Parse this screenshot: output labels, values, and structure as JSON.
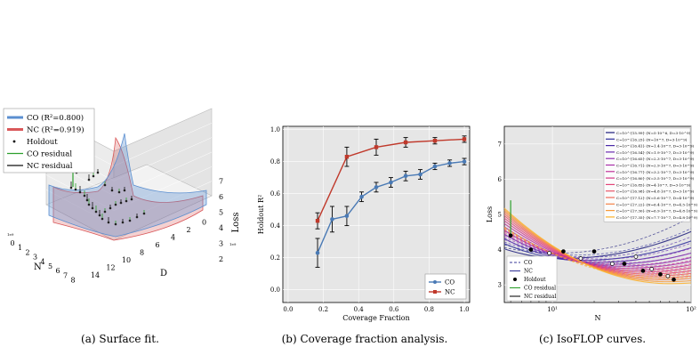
{
  "captions": {
    "a": "(a) Surface fit.",
    "b": "(b) Coverage fraction analysis.",
    "c": "(c) IsoFLOP curves."
  },
  "chart_data": [
    {
      "type": "surface",
      "xlabel": "N",
      "ylabel": "D",
      "zlabel": "Loss",
      "x_ticks": [
        "0",
        "1",
        "2",
        "3",
        "4",
        "5",
        "6",
        "7",
        "8"
      ],
      "x_exponent": "1e9",
      "y_ticks": [
        "14",
        "12",
        "10",
        "8",
        "6",
        "4",
        "2",
        "0"
      ],
      "y_exponent": "1e9",
      "z_ticks": [
        "2",
        "3",
        "4",
        "5",
        "6",
        "7"
      ],
      "legend": [
        "CO (R²=0.800)",
        "NC (R²=0.919)",
        "Holdout",
        "CO residual",
        "NC residual"
      ],
      "legend_position": "top-left",
      "colors": {
        "CO": "#5b8fd0",
        "NC": "#d9585a",
        "holdout": "#222222",
        "co_residual": "#2ca02c",
        "nc_residual": "#111111"
      }
    },
    {
      "type": "line",
      "xlabel": "Coverage Fraction",
      "ylabel": "Holdout R²",
      "xlim": [
        -0.03,
        1.03
      ],
      "ylim": [
        -0.08,
        1.02
      ],
      "x_ticks": [
        "0.0",
        "0.2",
        "0.4",
        "0.6",
        "0.8",
        "1.0"
      ],
      "y_ticks": [
        "0.0",
        "0.2",
        "0.4",
        "0.6",
        "0.8",
        "1.0"
      ],
      "grid": true,
      "legend_position": "bottom-right",
      "series": [
        {
          "name": "CO",
          "color": "#4a7ab5",
          "marker": "circle",
          "x": [
            0.167,
            0.25,
            0.333,
            0.417,
            0.5,
            0.583,
            0.667,
            0.75,
            0.833,
            0.917,
            1.0
          ],
          "y": [
            0.23,
            0.44,
            0.46,
            0.58,
            0.64,
            0.67,
            0.71,
            0.72,
            0.77,
            0.79,
            0.8
          ],
          "err": [
            0.09,
            0.08,
            0.06,
            0.03,
            0.03,
            0.03,
            0.03,
            0.03,
            0.02,
            0.02,
            0.02
          ]
        },
        {
          "name": "NC",
          "color": "#c0392b",
          "marker": "square",
          "x": [
            0.167,
            0.333,
            0.5,
            0.667,
            0.833,
            1.0
          ],
          "y": [
            0.43,
            0.83,
            0.89,
            0.92,
            0.93,
            0.94
          ],
          "err": [
            0.05,
            0.06,
            0.05,
            0.03,
            0.02,
            0.02
          ]
        }
      ]
    },
    {
      "type": "line",
      "xlabel": "N",
      "ylabel": "Loss",
      "xscale": "log",
      "x_ticks": [
        "10¹",
        "10²"
      ],
      "y_ticks": [
        "3",
        "4",
        "5",
        "6",
        "7"
      ],
      "ylim": [
        2.5,
        7.5
      ],
      "grid": true,
      "legend_position": "top-right",
      "compute_legend": [
        "C=10^{15.99} (N=5·10^6, D=3·10^9)",
        "C=10^{16.25} (N=10^7, D=3·10^9)",
        "C=10^{16.41} (N=1.4·10^7, D=3·10^9)",
        "C=10^{16.54} (N=1.9·10^7, D=3·10^9)",
        "C=10^{16.65} (N=2.3·10^7, D=3·10^9)",
        "C=10^{16.71} (N=2.9·10^7, D=3·10^9)",
        "C=10^{16.77} (N=3.2·10^7, D=3·10^9)",
        "C=10^{16.80} (N=3.5·10^7, D=3·10^9)",
        "C=10^{16.85} (N=4·10^7, D=3·10^9)",
        "C=10^{16.98} (N=4.8·10^7, D=3·10^9)",
        "C=10^{17.12} (N=5.6·10^7, D=4·10^9)",
        "C=10^{17.22} (N=6.4·10^7, D=4.5·10^9)",
        "C=10^{17.30} (N=6.9·10^7, D=4.8·10^9)",
        "C=10^{17.35} (N=7.7·10^7, D=4.8·10^9)"
      ],
      "compute_colors": [
        "#1a1a7a",
        "#2a2a9a",
        "#4b2aa8",
        "#6a2bb0",
        "#8a2cb0",
        "#a82ea8",
        "#c03098",
        "#d43888",
        "#e24478",
        "#ea5668",
        "#f06a58",
        "#f48248",
        "#f89a38",
        "#fcb22a"
      ],
      "legend2": [
        "CO",
        "NC",
        "Holdout",
        "CO residual",
        "NC residual"
      ],
      "legend2_position": "bottom-left",
      "holdout_points": {
        "x": [
          7,
          9.5,
          12,
          16,
          20,
          27,
          33,
          40,
          45,
          52,
          60,
          68,
          75
        ],
        "y": [
          4.0,
          3.9,
          3.95,
          3.75,
          3.95,
          3.6,
          3.6,
          3.8,
          3.4,
          3.45,
          3.3,
          3.25,
          3.15
        ]
      }
    }
  ]
}
